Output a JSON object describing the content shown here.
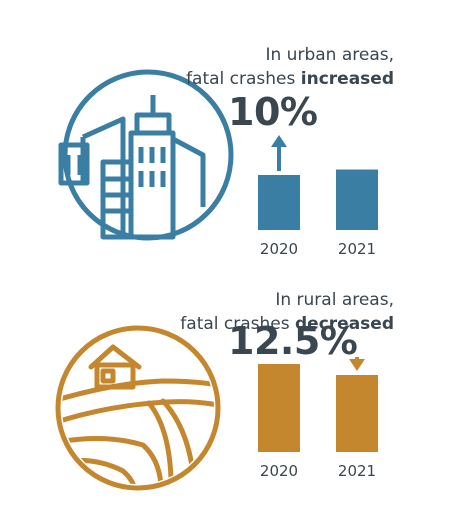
{
  "colors": {
    "urban": "#3a7fa3",
    "rural": "#c4872e",
    "text": "#3a4650"
  },
  "icons": {
    "urban": "city-skyline-icon",
    "rural": "farmland-house-icon",
    "urban_arrow": "arrow-up-icon",
    "rural_arrow": "arrow-down-icon"
  },
  "urban": {
    "caption_line1": "In urban areas,",
    "caption_line2_prefix": "fatal crashes ",
    "caption_line2_bold": "increased",
    "percent": "10%"
  },
  "rural": {
    "caption_line1": "In rural areas,",
    "caption_line2_prefix": "fatal crashes ",
    "caption_line2_bold": "decreased",
    "percent": "12.5%"
  },
  "chart_data": [
    {
      "type": "bar",
      "categories": [
        "2020",
        "2021"
      ],
      "values": [
        100,
        110
      ],
      "annotation": "10%",
      "trend": "increase"
    },
    {
      "type": "bar",
      "categories": [
        "2020",
        "2021"
      ],
      "values": [
        100,
        87.5
      ],
      "annotation": "12.5%",
      "trend": "decrease"
    }
  ]
}
